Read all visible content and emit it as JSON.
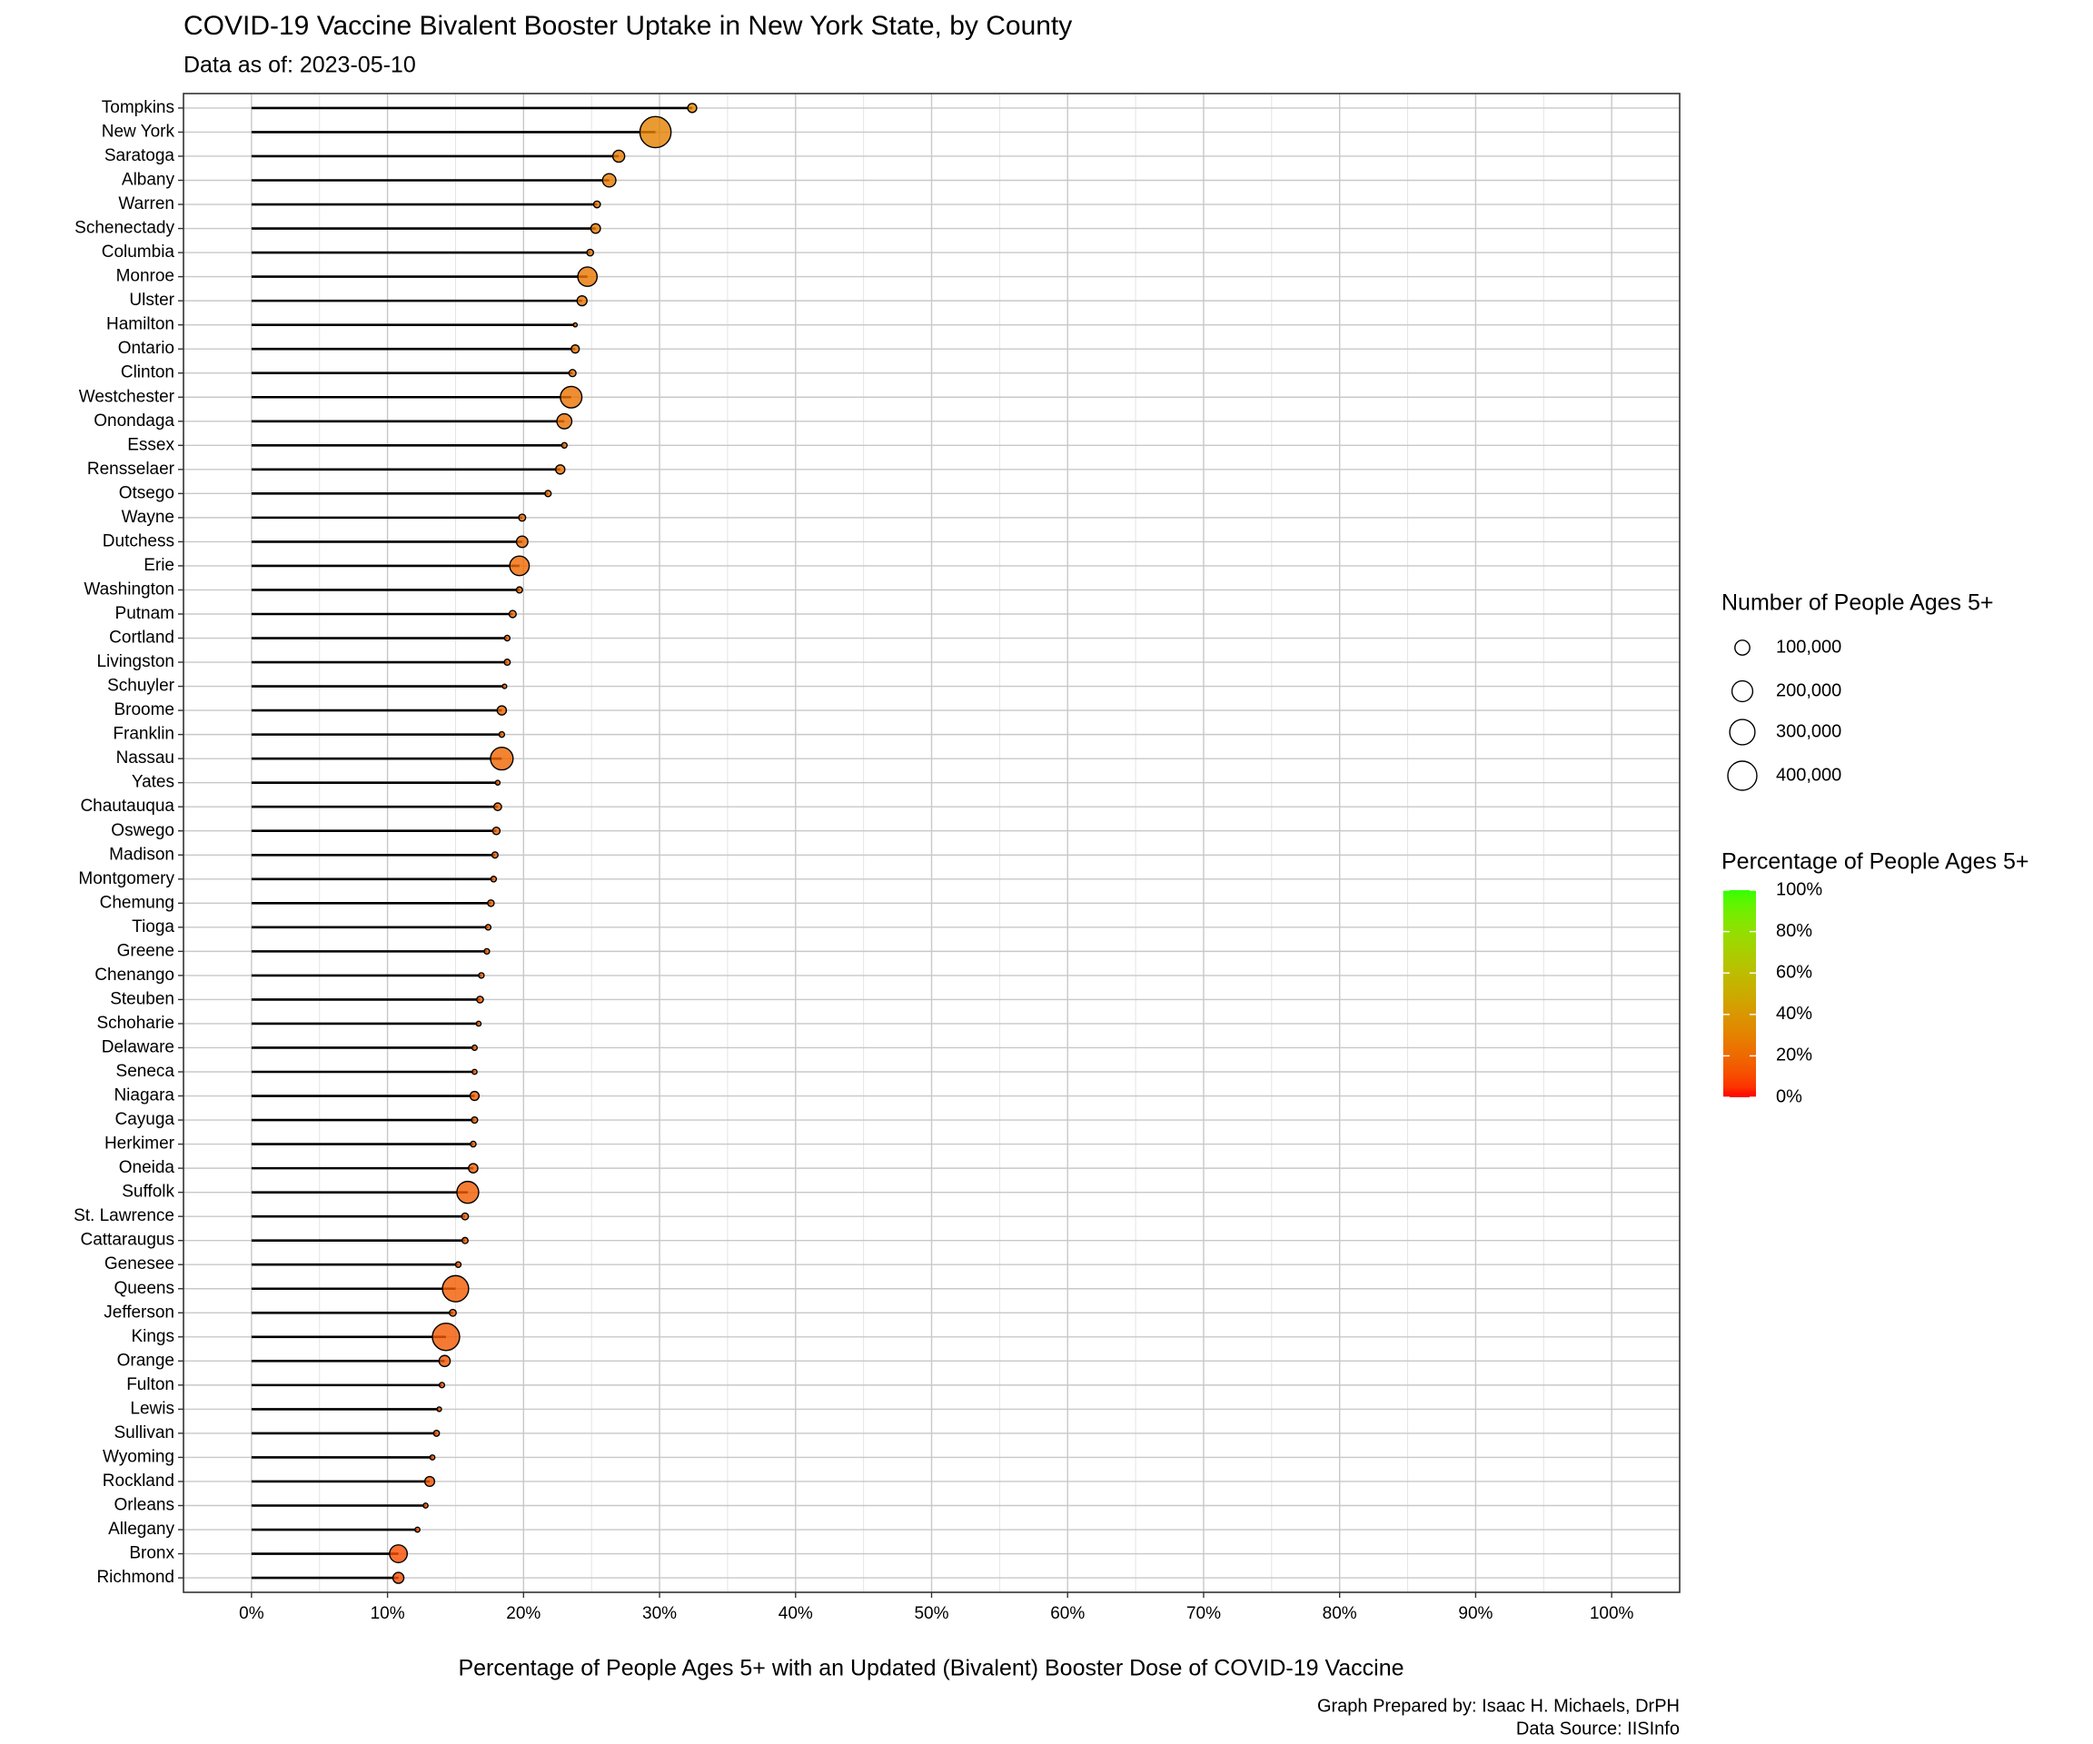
{
  "chart_data": {
    "type": "lollipop",
    "title": "COVID-19 Vaccine Bivalent Booster Uptake in New York State, by County",
    "subtitle": "Data as of: 2023-05-10",
    "x_label": "Percentage of People Ages 5+ with an Updated (Bivalent) Booster Dose of COVID-19 Vaccine",
    "caption": [
      "Graph Prepared by: Isaac H. Michaels, DrPH",
      "Data Source: IISInfo"
    ],
    "categories": [
      "Tompkins",
      "New York",
      "Saratoga",
      "Albany",
      "Warren",
      "Schenectady",
      "Columbia",
      "Monroe",
      "Ulster",
      "Hamilton",
      "Ontario",
      "Clinton",
      "Westchester",
      "Onondaga",
      "Essex",
      "Rensselaer",
      "Otsego",
      "Wayne",
      "Dutchess",
      "Erie",
      "Washington",
      "Putnam",
      "Cortland",
      "Livingston",
      "Schuyler",
      "Broome",
      "Franklin",
      "Nassau",
      "Yates",
      "Chautauqua",
      "Oswego",
      "Madison",
      "Montgomery",
      "Chemung",
      "Tioga",
      "Greene",
      "Chenango",
      "Steuben",
      "Schoharie",
      "Delaware",
      "Seneca",
      "Niagara",
      "Cayuga",
      "Herkimer",
      "Oneida",
      "Suffolk",
      "St. Lawrence",
      "Cattaraugus",
      "Genesee",
      "Queens",
      "Jefferson",
      "Kings",
      "Orange",
      "Fulton",
      "Lewis",
      "Sullivan",
      "Wyoming",
      "Rockland",
      "Orleans",
      "Allegany",
      "Bronx",
      "Richmond"
    ],
    "values": [
      32.4,
      29.7,
      27.0,
      26.3,
      25.4,
      25.3,
      24.9,
      24.7,
      24.3,
      23.8,
      23.8,
      23.6,
      23.5,
      23.0,
      23.0,
      22.7,
      21.8,
      19.9,
      19.9,
      19.7,
      19.7,
      19.2,
      18.8,
      18.8,
      18.6,
      18.4,
      18.4,
      18.4,
      18.1,
      18.1,
      18.0,
      17.9,
      17.8,
      17.6,
      17.4,
      17.3,
      16.9,
      16.8,
      16.7,
      16.4,
      16.4,
      16.4,
      16.4,
      16.3,
      16.3,
      15.9,
      15.7,
      15.7,
      15.2,
      15.0,
      14.8,
      14.3,
      14.2,
      14.0,
      13.8,
      13.6,
      13.3,
      13.1,
      12.8,
      12.2,
      10.8,
      10.8
    ],
    "sizes": [
      32500,
      460000,
      61000,
      79000,
      15800,
      38000,
      14400,
      173000,
      41000,
      1200,
      25000,
      17700,
      216000,
      101000,
      8000,
      34000,
      12200,
      17100,
      56000,
      177000,
      11400,
      17700,
      8300,
      11100,
      3000,
      34000,
      8300,
      239000,
      4200,
      21700,
      19800,
      11500,
      8400,
      13700,
      8000,
      7800,
      7600,
      14800,
      4700,
      6900,
      5200,
      32800,
      11800,
      9100,
      35000,
      223000,
      15700,
      11300,
      8400,
      322000,
      16000,
      350000,
      52500,
      7000,
      3500,
      10200,
      5000,
      39300,
      4900,
      5400,
      144000,
      50800
    ],
    "xlim": [
      -5,
      105
    ],
    "xticks": [
      {
        "value": 0,
        "label": "0%"
      },
      {
        "value": 10,
        "label": "10%"
      },
      {
        "value": 20,
        "label": "20%"
      },
      {
        "value": 30,
        "label": "30%"
      },
      {
        "value": 40,
        "label": "40%"
      },
      {
        "value": 50,
        "label": "50%"
      },
      {
        "value": 60,
        "label": "60%"
      },
      {
        "value": 70,
        "label": "70%"
      },
      {
        "value": 80,
        "label": "80%"
      },
      {
        "value": 90,
        "label": "90%"
      },
      {
        "value": 100,
        "label": "100%"
      }
    ],
    "xticks_minor": [
      5,
      15,
      25,
      35,
      45,
      55,
      65,
      75,
      85,
      95
    ],
    "grid": true,
    "size_legend": {
      "title": "Number of People Ages 5+",
      "values": [
        {
          "value": 100000,
          "label": "100,000"
        },
        {
          "value": 200000,
          "label": "200,000"
        },
        {
          "value": 300000,
          "label": "300,000"
        },
        {
          "value": 400000,
          "label": "400,000"
        }
      ]
    },
    "color_scale": {
      "title": "Percentage of People Ages 5+",
      "low": "#FF0000",
      "high": "#33FF00",
      "limits": [
        0,
        100
      ],
      "ticks": [
        {
          "value": 0,
          "label": "0%"
        },
        {
          "value": 20,
          "label": "20%"
        },
        {
          "value": 40,
          "label": "40%"
        },
        {
          "value": 60,
          "label": "60%"
        },
        {
          "value": 80,
          "label": "80%"
        },
        {
          "value": 100,
          "label": "100%"
        }
      ]
    }
  }
}
